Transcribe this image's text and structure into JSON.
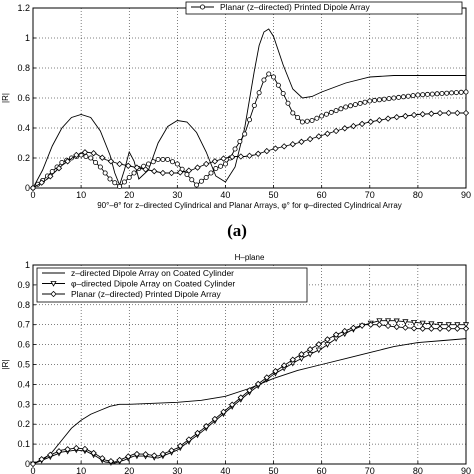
{
  "chart_data": [
    {
      "type": "line",
      "title": "",
      "caption": "(a)",
      "xlabel": "90°–θ° for z–directed Cylindrical and Planar Arrays, φ° for φ–directed Cylindrical Array",
      "ylabel": "|R|",
      "xlim": [
        0,
        90
      ],
      "ylim": [
        0,
        1.2
      ],
      "xticks": [
        0,
        10,
        20,
        30,
        40,
        50,
        60,
        70,
        80,
        90
      ],
      "xtick_labels": [
        "0",
        "10",
        "20",
        "30",
        "40",
        "50",
        "60",
        "70",
        "80",
        "90"
      ],
      "yticks": [
        0,
        0.2,
        0.4,
        0.6,
        0.8,
        1,
        1.2
      ],
      "ytick_labels": [
        "0",
        "0.2",
        "0.4",
        "0.6",
        "0.8",
        "1",
        "1.2"
      ],
      "grid": true,
      "legend_position": "top-right",
      "legend": [
        {
          "label": "Planar (z–directed) Printed Dipole Array",
          "marker": "circle",
          "series": 1
        }
      ],
      "series": [
        {
          "marker": "none",
          "x": [
            0,
            2,
            4,
            6,
            8,
            10,
            12,
            14,
            16,
            17,
            18,
            19,
            20,
            21,
            22,
            24,
            26,
            28,
            30,
            32,
            34,
            36,
            38,
            40,
            42,
            44,
            46,
            47,
            48,
            49,
            50,
            52,
            54,
            56,
            58,
            60,
            65,
            70,
            75,
            80,
            85,
            90
          ],
          "y": [
            0,
            0.12,
            0.28,
            0.4,
            0.47,
            0.49,
            0.47,
            0.38,
            0.22,
            0.1,
            0.02,
            0.12,
            0.24,
            0.18,
            0.06,
            0.12,
            0.3,
            0.41,
            0.45,
            0.44,
            0.37,
            0.24,
            0.08,
            0.04,
            0.14,
            0.4,
            0.78,
            0.95,
            1.04,
            1.06,
            1.01,
            0.82,
            0.66,
            0.6,
            0.61,
            0.64,
            0.7,
            0.74,
            0.75,
            0.75,
            0.75,
            0.75
          ]
        },
        {
          "marker": "circle",
          "x": [
            0,
            2,
            4,
            6,
            8,
            10,
            12,
            14,
            16,
            18,
            20,
            22,
            24,
            26,
            28,
            30,
            32,
            34,
            36,
            38,
            40,
            41,
            42,
            44,
            46,
            48,
            49,
            50,
            52,
            54,
            56,
            58,
            60,
            65,
            70,
            75,
            80,
            85,
            90
          ],
          "y": [
            0,
            0.05,
            0.11,
            0.17,
            0.2,
            0.22,
            0.2,
            0.14,
            0.06,
            0.01,
            0.07,
            0.13,
            0.16,
            0.19,
            0.19,
            0.16,
            0.09,
            0.02,
            0.07,
            0.13,
            0.16,
            0.2,
            0.26,
            0.36,
            0.55,
            0.72,
            0.76,
            0.74,
            0.63,
            0.5,
            0.44,
            0.45,
            0.48,
            0.54,
            0.58,
            0.6,
            0.62,
            0.63,
            0.64
          ]
        },
        {
          "marker": "diamond",
          "x": [
            0,
            3,
            6,
            9,
            11,
            13,
            15,
            18,
            21,
            24,
            27,
            30,
            33,
            36,
            40,
            42,
            44,
            46,
            48,
            50,
            55,
            60,
            65,
            70,
            75,
            80,
            85,
            90
          ],
          "y": [
            0,
            0.06,
            0.15,
            0.22,
            0.24,
            0.23,
            0.19,
            0.16,
            0.14,
            0.12,
            0.1,
            0.1,
            0.12,
            0.16,
            0.2,
            0.21,
            0.21,
            0.22,
            0.24,
            0.26,
            0.3,
            0.35,
            0.4,
            0.44,
            0.47,
            0.49,
            0.5,
            0.5
          ]
        }
      ]
    },
    {
      "type": "line",
      "title": "H–plane",
      "xlabel": "",
      "ylabel": "|R|",
      "xlim": [
        0,
        90
      ],
      "ylim": [
        0,
        1
      ],
      "xticks": [
        0,
        10,
        20,
        30,
        40,
        50,
        60,
        70,
        80,
        90
      ],
      "xtick_labels": [
        "0",
        "10",
        "20",
        "30",
        "40",
        "50",
        "60",
        "70",
        "80",
        "90"
      ],
      "yticks": [
        0,
        0.1,
        0.2,
        0.3,
        0.4,
        0.5,
        0.6,
        0.7,
        0.8,
        0.9,
        1
      ],
      "ytick_labels": [
        "0",
        "0.1",
        "0.2",
        "0.3",
        "0.4",
        "0.5",
        "0.6",
        "0.7",
        "0.8",
        "0.9",
        "1"
      ],
      "grid": true,
      "legend_position": "top-left",
      "legend": [
        {
          "label": "z–directed Dipole Array on Coated Cylinder",
          "marker": "none",
          "series": 0
        },
        {
          "label": "φ–directed Dipole Array on Coated Cylinder",
          "marker": "triangle",
          "series": 1
        },
        {
          "label": "Planar (z–directed) Printed Dipole Array",
          "marker": "diamond",
          "series": 2
        }
      ],
      "series": [
        {
          "name": "z–directed Dipole Array on Coated Cylinder",
          "marker": "none",
          "x": [
            0,
            2,
            4,
            6,
            8,
            10,
            12,
            14,
            16,
            18,
            20,
            25,
            30,
            35,
            40,
            45,
            50,
            55,
            60,
            65,
            70,
            75,
            80,
            85,
            90
          ],
          "y": [
            0,
            0.02,
            0.06,
            0.12,
            0.18,
            0.22,
            0.25,
            0.27,
            0.29,
            0.3,
            0.3,
            0.305,
            0.31,
            0.32,
            0.34,
            0.38,
            0.43,
            0.47,
            0.5,
            0.53,
            0.56,
            0.59,
            0.61,
            0.62,
            0.63
          ]
        },
        {
          "name": "φ–directed Dipole Array on Coated Cylinder",
          "marker": "triangle",
          "x": [
            0,
            3,
            6,
            9,
            11,
            13,
            15,
            17,
            19,
            21,
            23,
            26,
            30,
            35,
            40,
            45,
            50,
            55,
            60,
            63,
            66,
            69,
            72,
            75,
            80,
            85,
            90
          ],
          "y": [
            0,
            0.03,
            0.06,
            0.07,
            0.065,
            0.04,
            0.01,
            0.005,
            0.02,
            0.04,
            0.04,
            0.03,
            0.07,
            0.16,
            0.26,
            0.36,
            0.45,
            0.52,
            0.58,
            0.63,
            0.67,
            0.7,
            0.72,
            0.72,
            0.71,
            0.7,
            0.7
          ]
        },
        {
          "name": "Planar (z–directed) Printed Dipole Array",
          "marker": "diamond",
          "x": [
            0,
            3,
            6,
            9,
            11,
            13,
            15,
            17,
            19,
            21,
            23,
            26,
            30,
            35,
            40,
            45,
            50,
            55,
            60,
            63,
            66,
            69,
            72,
            75,
            80,
            85,
            90
          ],
          "y": [
            0,
            0.04,
            0.07,
            0.08,
            0.075,
            0.05,
            0.02,
            0.01,
            0.03,
            0.05,
            0.05,
            0.04,
            0.08,
            0.17,
            0.27,
            0.37,
            0.46,
            0.54,
            0.61,
            0.65,
            0.68,
            0.7,
            0.7,
            0.69,
            0.68,
            0.68,
            0.68
          ]
        }
      ]
    }
  ]
}
